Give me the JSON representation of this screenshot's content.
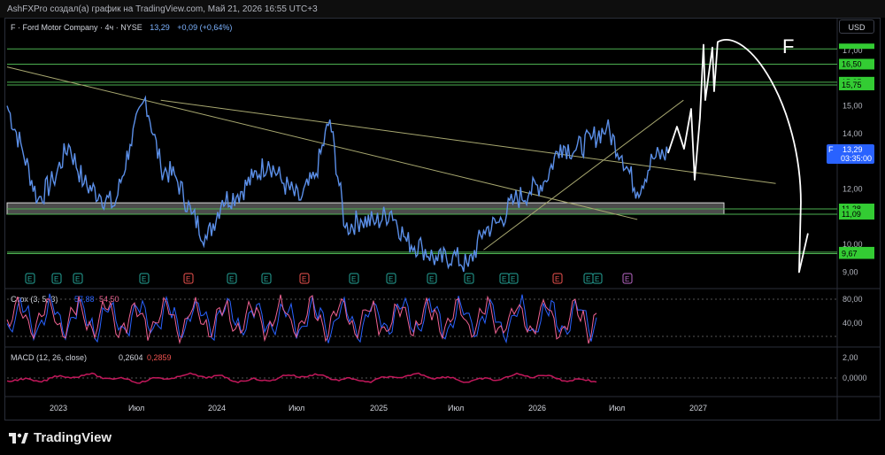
{
  "header": {
    "author_line": "AshFXPro создал(а) график на TradingView.com, Май 21, 2026 16:55 UTC+3"
  },
  "legend": {
    "symbol": "F · Ford Motor Company · 4ч · NYSE",
    "price": "13,29",
    "change": "+0,09 (+0,64%)"
  },
  "currency": "USD",
  "annotation_letter": "F",
  "branding": {
    "name": "TradingView"
  },
  "colors": {
    "price_line": "#5b8fe8",
    "level_line": "#4caf50",
    "trend_line": "#a8a870",
    "zone_fill": "#8a8a8a",
    "stoch_k": "#2962ff",
    "stoch_d": "#f06292",
    "price_tag": "#2962ff",
    "green_tag": "#33cc33",
    "macd_hist": "#c2185b",
    "earnings_green": "#26a69a",
    "earnings_red": "#ef5350",
    "dividend_purple": "#ba68c8"
  },
  "price_axis": {
    "ticks": [
      "17,00",
      "15,00",
      "14,00",
      "12,00",
      "10,00",
      "9,00"
    ],
    "level_tags": [
      "16,50",
      "15,85",
      "15,75",
      "11,28",
      "11,09",
      "9,72",
      "9,67"
    ],
    "current_tag": {
      "symbol": "F",
      "price": "13,29",
      "countdown": "03:35:00"
    }
  },
  "time_axis": {
    "labels": [
      "2023",
      "Июл",
      "2024",
      "Июл",
      "2025",
      "Июл",
      "2026",
      "Июл",
      "2027"
    ]
  },
  "stoch": {
    "label": "Стох (3, 5, 3)",
    "k_value": "57,88",
    "d_value": "54,50",
    "ticks": [
      "80,00",
      "40,00"
    ]
  },
  "macd": {
    "label": "MACD (12, 26, close)",
    "macd_value": "0,2604",
    "signal_value": "0,2859",
    "ticks": [
      "2,00",
      "0,0000"
    ]
  },
  "chart_data": {
    "type": "line",
    "title": "",
    "x_range": [
      "2022-10",
      "2027-04"
    ],
    "y_range": [
      8.6,
      17.6
    ],
    "price_series": {
      "x": [
        "2022-10",
        "2022-11",
        "2022-12",
        "2023-01",
        "2023-02",
        "2023-03",
        "2023-04",
        "2023-05",
        "2023-06",
        "2023-07",
        "2023-08",
        "2023-09",
        "2023-10",
        "2023-11",
        "2023-12",
        "2024-01",
        "2024-02",
        "2024-03",
        "2024-04",
        "2024-05",
        "2024-06",
        "2024-07",
        "2024-08",
        "2024-09",
        "2024-10",
        "2024-11",
        "2024-12",
        "2025-01",
        "2025-02",
        "2025-03",
        "2025-04",
        "2025-05",
        "2025-06",
        "2025-07",
        "2025-08",
        "2025-09",
        "2025-10",
        "2025-11",
        "2025-12",
        "2026-01",
        "2026-02",
        "2026-03",
        "2026-04",
        "2026-05"
      ],
      "values": [
        15.0,
        13.4,
        11.6,
        12.3,
        13.6,
        12.2,
        11.8,
        11.4,
        13.6,
        15.3,
        12.8,
        12.4,
        11.1,
        10.2,
        11.6,
        11.8,
        12.4,
        13.0,
        12.2,
        11.6,
        12.4,
        14.5,
        10.6,
        10.9,
        10.8,
        11.2,
        10.1,
        9.9,
        9.4,
        9.6,
        9.2,
        10.5,
        10.8,
        11.6,
        11.9,
        12.3,
        13.6,
        13.4,
        13.8,
        14.2,
        13.2,
        11.9,
        13.1,
        13.29
      ]
    },
    "horizontal_levels": [
      17.05,
      16.5,
      15.85,
      15.75,
      11.28,
      11.09,
      9.72,
      9.67
    ],
    "support_zone": [
      11.09,
      11.5
    ],
    "trend_lines": [
      {
        "from": [
          "2022-10",
          16.4
        ],
        "to": [
          "2026-03",
          10.9
        ]
      },
      {
        "from": [
          "2023-08",
          15.2
        ],
        "to": [
          "2026-12",
          12.2
        ]
      },
      {
        "from": [
          "2025-05",
          9.8
        ],
        "to": [
          "2026-06",
          15.2
        ]
      }
    ],
    "projection_note": "hand-drawn forecast: rise to ~17.6 then drop to ~9.0"
  }
}
